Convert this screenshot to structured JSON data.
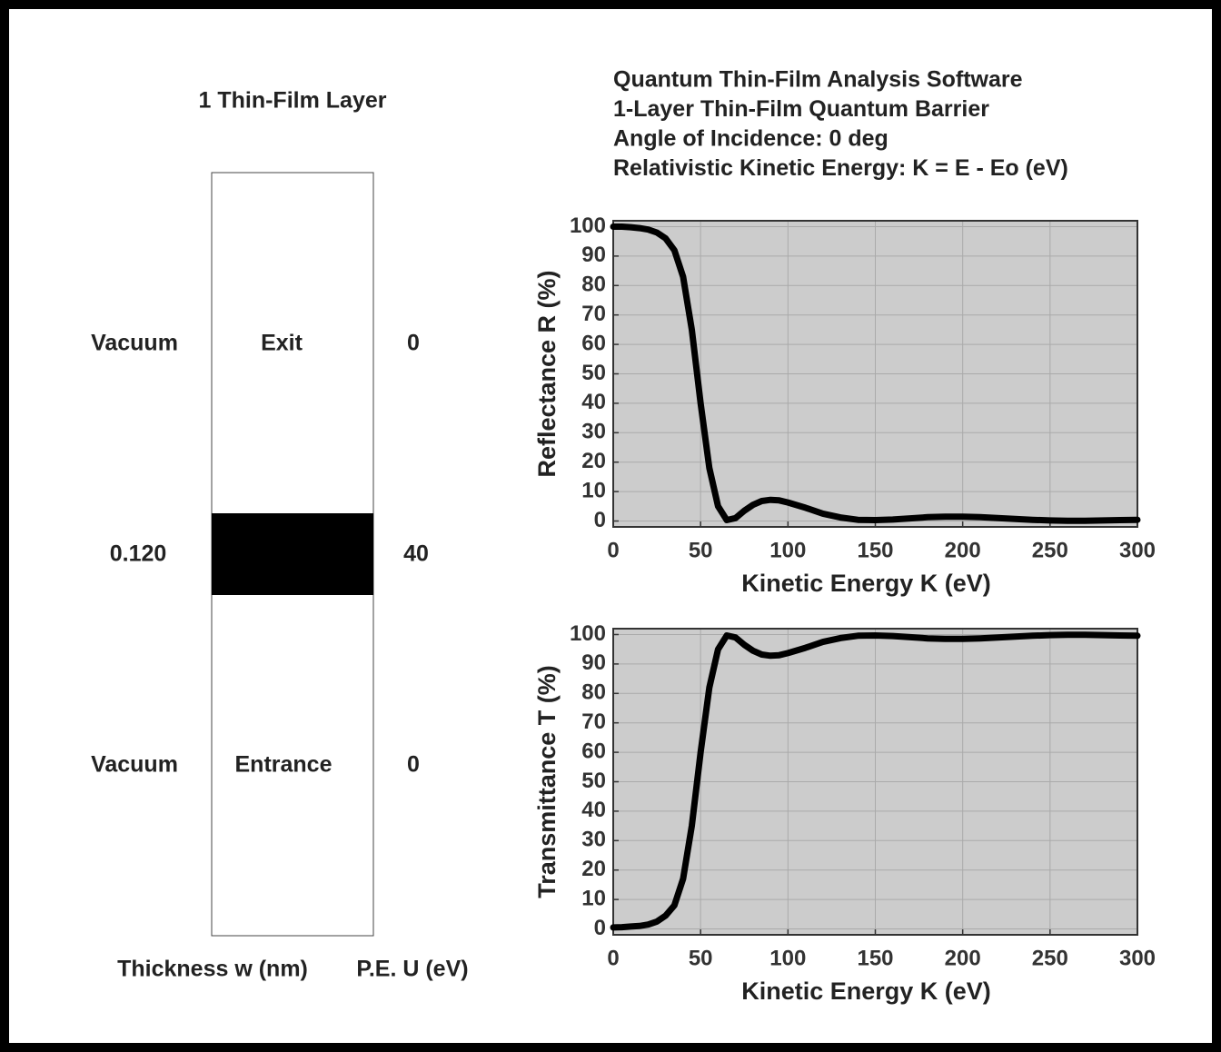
{
  "diagram": {
    "title": "1 Thin-Film Layer",
    "rows": [
      {
        "medium": "Vacuum",
        "role": "Exit",
        "potential": "0"
      },
      {
        "thickness": "0.120",
        "potential": "40"
      },
      {
        "medium": "Vacuum",
        "role": "Entrance",
        "potential": "0"
      }
    ],
    "footer": {
      "thickness_label": "Thickness w (nm)",
      "potential_label": "P.E. U (eV)"
    }
  },
  "chart_data": [
    {
      "type": "line",
      "title": [
        "Quantum Thin-Film Analysis Software",
        "1-Layer Thin-Film Quantum Barrier",
        "Angle of Incidence: 0 deg",
        "Relativistic Kinetic Energy: K = E - Eo (eV)"
      ],
      "x_label": "Kinetic Energy K (eV)",
      "y_label": "Reflectance R (%)",
      "x": [
        0,
        5,
        10,
        15,
        20,
        25,
        30,
        35,
        40,
        45,
        50,
        55,
        60,
        65,
        70,
        75,
        80,
        85,
        90,
        95,
        100,
        110,
        120,
        130,
        140,
        150,
        160,
        170,
        180,
        190,
        200,
        210,
        220,
        230,
        240,
        250,
        260,
        270,
        280,
        290,
        300
      ],
      "series": [
        {
          "name": "R",
          "color": "#000000",
          "values": [
            100,
            100,
            99.8,
            99.5,
            99,
            98,
            96,
            92,
            83,
            65,
            40,
            18,
            5,
            0.3,
            1,
            3.5,
            5.5,
            6.8,
            7.2,
            7,
            6.3,
            4.5,
            2.5,
            1.2,
            0.4,
            0.3,
            0.5,
            0.9,
            1.3,
            1.5,
            1.5,
            1.3,
            1,
            0.7,
            0.4,
            0.2,
            0.1,
            0.1,
            0.2,
            0.3,
            0.4
          ]
        }
      ],
      "xlim": [
        0,
        300
      ],
      "xticks": [
        0,
        50,
        100,
        150,
        200,
        250,
        300
      ],
      "ylim": [
        -2,
        102
      ],
      "yticks": [
        0,
        10,
        20,
        30,
        40,
        50,
        60,
        70,
        80,
        90,
        100
      ],
      "grid": true,
      "background": "#cccccc"
    },
    {
      "type": "line",
      "x_label": "Kinetic Energy K (eV)",
      "y_label": "Transmittance T (%)",
      "x": [
        0,
        5,
        10,
        15,
        20,
        25,
        30,
        35,
        40,
        45,
        50,
        55,
        60,
        65,
        70,
        75,
        80,
        85,
        90,
        95,
        100,
        110,
        120,
        130,
        140,
        150,
        160,
        170,
        180,
        190,
        200,
        210,
        220,
        230,
        240,
        250,
        260,
        270,
        280,
        290,
        300
      ],
      "series": [
        {
          "name": "T",
          "color": "#000000",
          "values": [
            0.5,
            0.6,
            0.8,
            1,
            1.5,
            2.5,
            4.5,
            8,
            17,
            35,
            60,
            82,
            95,
            99.7,
            99,
            96.5,
            94.5,
            93.2,
            92.8,
            93,
            93.7,
            95.5,
            97.5,
            98.8,
            99.6,
            99.7,
            99.5,
            99.1,
            98.7,
            98.5,
            98.5,
            98.7,
            99,
            99.3,
            99.6,
            99.8,
            99.9,
            99.9,
            99.8,
            99.7,
            99.6
          ]
        }
      ],
      "xlim": [
        0,
        300
      ],
      "xticks": [
        0,
        50,
        100,
        150,
        200,
        250,
        300
      ],
      "ylim": [
        -2,
        102
      ],
      "yticks": [
        0,
        10,
        20,
        30,
        40,
        50,
        60,
        70,
        80,
        90,
        100
      ],
      "grid": true,
      "background": "#cccccc"
    }
  ]
}
